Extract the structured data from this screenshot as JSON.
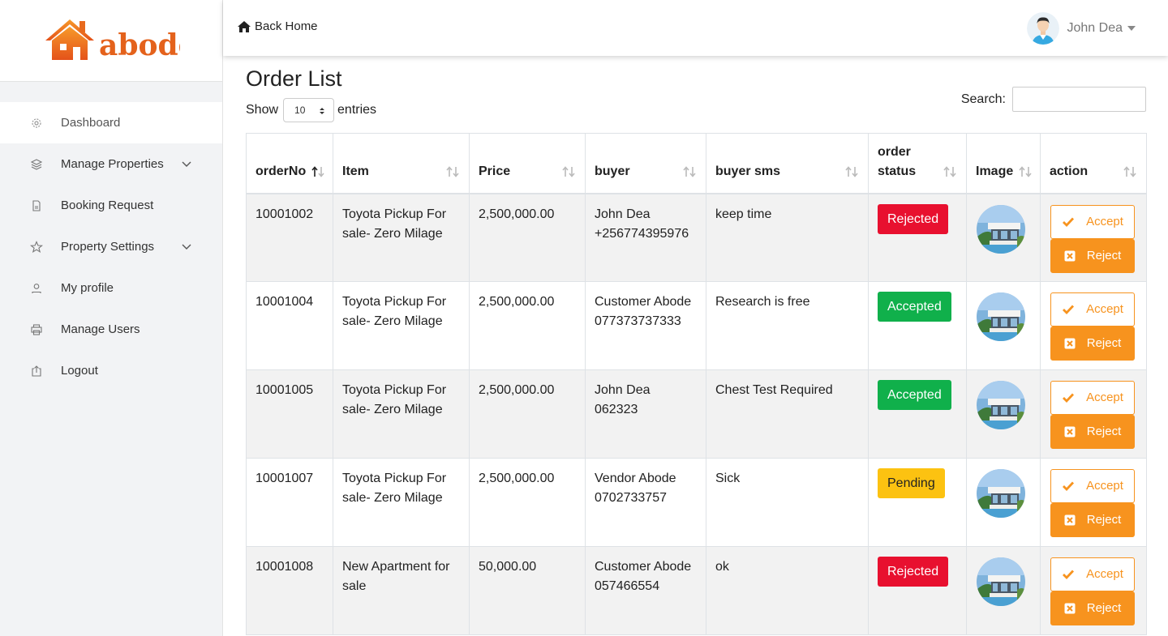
{
  "brand": {
    "name": "abode",
    "accent": "#f7931e"
  },
  "topbar": {
    "back_home": "Back Home",
    "user_name": "John Dea"
  },
  "sidebar": {
    "items": [
      {
        "label": "Dashboard",
        "icon": "dashboard-icon",
        "active": true
      },
      {
        "label": "Manage Properties",
        "icon": "layers-icon",
        "expandable": true
      },
      {
        "label": "Booking Request",
        "icon": "document-icon"
      },
      {
        "label": "Property Settings",
        "icon": "star-icon",
        "expandable": true
      },
      {
        "label": "My profile",
        "icon": "user-icon"
      },
      {
        "label": "Manage Users",
        "icon": "printer-icon"
      },
      {
        "label": "Logout",
        "icon": "logout-icon"
      }
    ]
  },
  "page": {
    "title": "Order List"
  },
  "controls": {
    "show_label": "Show",
    "entries_value": "10",
    "entries_label": "entries",
    "search_label": "Search:"
  },
  "table": {
    "columns": [
      "orderNo",
      "Item",
      "Price",
      "buyer",
      "buyer sms",
      "order status",
      "Image",
      "action"
    ],
    "rows": [
      {
        "orderNo": "10001002",
        "item": "Toyota Pickup For sale- Zero Milage",
        "price": "2,500,000.00",
        "buyer_name": "John Dea",
        "buyer_phone": "+256774395976",
        "sms": "keep time",
        "status": "Rejected"
      },
      {
        "orderNo": "10001004",
        "item": "Toyota Pickup For sale- Zero Milage",
        "price": "2,500,000.00",
        "buyer_name": "Customer Abode",
        "buyer_phone": "077373737333",
        "sms": "Research is free",
        "status": "Accepted"
      },
      {
        "orderNo": "10001005",
        "item": "Toyota Pickup For sale- Zero Milage",
        "price": "2,500,000.00",
        "buyer_name": "John Dea",
        "buyer_phone": "062323",
        "sms": "Chest Test Required",
        "status": "Accepted"
      },
      {
        "orderNo": "10001007",
        "item": "Toyota Pickup For sale- Zero Milage",
        "price": "2,500,000.00",
        "buyer_name": "Vendor Abode",
        "buyer_phone": "0702733757",
        "sms": "Sick",
        "status": "Pending"
      },
      {
        "orderNo": "10001008",
        "item": "New Apartment for sale",
        "price": "50,000.00",
        "buyer_name": "Customer Abode",
        "buyer_phone": "057466554",
        "sms": "ok",
        "status": "Rejected"
      }
    ],
    "accept_label": "Accept",
    "reject_label": "Reject"
  },
  "colors": {
    "rejected": "#e8102f",
    "accepted": "#10b04b",
    "pending": "#fcc211"
  }
}
